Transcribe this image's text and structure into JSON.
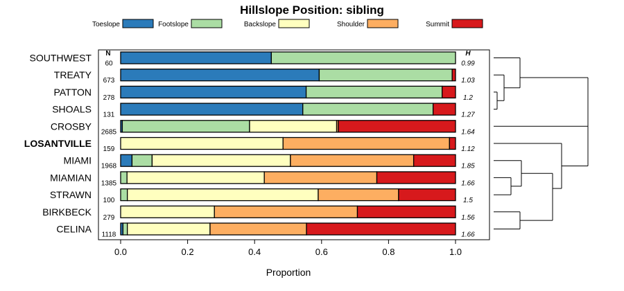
{
  "chart_data": {
    "type": "bar",
    "stacked": "proportion",
    "title": "Hillslope Position: sibling",
    "xlabel": "Proportion",
    "ylabel": "",
    "xlim": [
      0,
      1
    ],
    "x_ticks": [
      "0.0",
      "0.2",
      "0.4",
      "0.6",
      "0.8",
      "1.0"
    ],
    "legend_position": "top",
    "n_header": "N",
    "h_header": "H",
    "highlighted_category": "LOSANTVILLE",
    "series": [
      {
        "name": "Toeslope",
        "color": "#2b7bba"
      },
      {
        "name": "Footslope",
        "color": "#abdda4"
      },
      {
        "name": "Backslope",
        "color": "#ffffbf"
      },
      {
        "name": "Shoulder",
        "color": "#fdae61"
      },
      {
        "name": "Summit",
        "color": "#d7191c"
      }
    ],
    "categories": [
      {
        "name": "SOUTHWEST",
        "n": "60",
        "h": "0.99",
        "values": [
          0.45,
          0.55,
          0.0,
          0.0,
          0.0
        ]
      },
      {
        "name": "TREATY",
        "n": "673",
        "h": "1.03",
        "values": [
          0.593,
          0.397,
          0.0,
          0.0,
          0.01
        ]
      },
      {
        "name": "PATTON",
        "n": "278",
        "h": "1.2",
        "values": [
          0.554,
          0.406,
          0.0,
          0.0,
          0.04
        ]
      },
      {
        "name": "SHOALS",
        "n": "131",
        "h": "1.27",
        "values": [
          0.544,
          0.389,
          0.0,
          0.0,
          0.067
        ]
      },
      {
        "name": "CROSBY",
        "n": "2685",
        "h": "1.64",
        "values": [
          0.005,
          0.38,
          0.26,
          0.005,
          0.35
        ]
      },
      {
        "name": "LOSANTVILLE",
        "n": "159",
        "h": "1.12",
        "values": [
          0.0,
          0.0,
          0.485,
          0.497,
          0.018
        ]
      },
      {
        "name": "MIAMI",
        "n": "1968",
        "h": "1.85",
        "values": [
          0.034,
          0.06,
          0.413,
          0.368,
          0.125
        ]
      },
      {
        "name": "MIAMIAN",
        "n": "1385",
        "h": "1.66",
        "values": [
          0.0,
          0.019,
          0.41,
          0.336,
          0.235
        ]
      },
      {
        "name": "STRAWN",
        "n": "100",
        "h": "1.5",
        "values": [
          0.0,
          0.02,
          0.57,
          0.24,
          0.17
        ]
      },
      {
        "name": "BIRKBECK",
        "n": "279",
        "h": "1.56",
        "values": [
          0.0,
          0.0,
          0.28,
          0.427,
          0.293
        ]
      },
      {
        "name": "CELINA",
        "n": "1118",
        "h": "1.66",
        "values": [
          0.007,
          0.013,
          0.247,
          0.288,
          0.445
        ]
      }
    ]
  }
}
